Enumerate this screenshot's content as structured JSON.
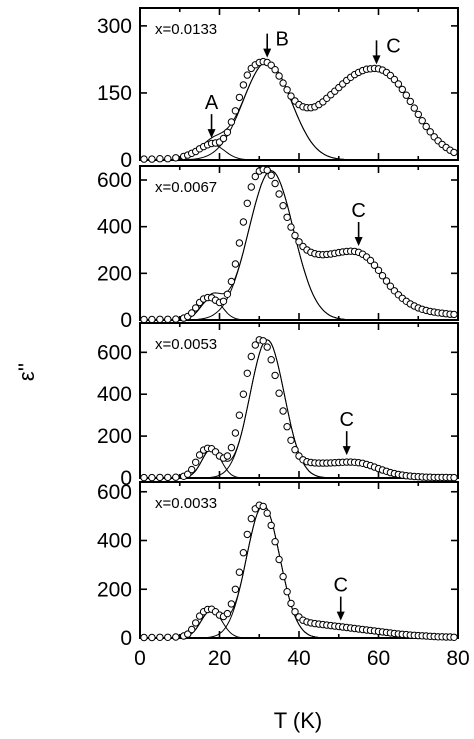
{
  "chart_data": {
    "type": "scatter",
    "ylabel": "ε''",
    "xlabel": "T (K)",
    "xlim": [
      0,
      80
    ],
    "x_ticks": [
      "0",
      "20",
      "40",
      "60",
      "80"
    ],
    "grid": false,
    "legend": "none",
    "panels": [
      {
        "annotation": "x=0.0133",
        "ylim": [
          0,
          340
        ],
        "y_ticks": [
          "0",
          "150",
          "300"
        ],
        "y_tick_values": [
          0,
          150,
          300
        ],
        "peak_labels": [
          {
            "label": "A",
            "x": 18,
            "y": 40
          },
          {
            "label": "B",
            "x": 32,
            "y": 220
          },
          {
            "label": "C",
            "x": 59.5,
            "y": 205
          }
        ],
        "fit_components": [
          {
            "center": 18,
            "amplitude": 35,
            "width": 3.2
          },
          {
            "center": 32,
            "amplitude": 220,
            "width": 6.0
          }
        ],
        "series": [
          {
            "name": "",
            "x": [
              1,
              3,
              5,
              7,
              9,
              11,
              12,
              13,
              14,
              15,
              16,
              17,
              18,
              19,
              20,
              21,
              22,
              23,
              24,
              25,
              26,
              27,
              28,
              29,
              30,
              31,
              32,
              33,
              34,
              35,
              36,
              37,
              38,
              39,
              40,
              41,
              42,
              43,
              44,
              45,
              46,
              47,
              48,
              49,
              50,
              51,
              52,
              53,
              54,
              55,
              56,
              57,
              58,
              59,
              60,
              61,
              62,
              63,
              64,
              65,
              66,
              67,
              68,
              69,
              70,
              71,
              72,
              73,
              74,
              75,
              76,
              77,
              78,
              79
            ],
            "y": [
              2,
              2,
              3,
              3,
              5,
              8,
              11,
              15,
              19,
              25,
              30,
              34,
              37,
              38,
              40,
              48,
              62,
              85,
              110,
              140,
              168,
              190,
              205,
              213,
              218,
              220,
              218,
              212,
              202,
              188,
              172,
              157,
              143,
              132,
              124,
              119,
              117,
              117,
              119,
              124,
              130,
              138,
              146,
              154,
              162,
              170,
              178,
              185,
              191,
              196,
              200,
              203,
              204,
              205,
              204,
              201,
              196,
              189,
              180,
              170,
              158,
              145,
              131,
              116,
              102,
              88,
              75,
              63,
              52,
              43,
              35,
              28,
              22,
              17
            ]
          }
        ]
      },
      {
        "annotation": "x=0.0067",
        "ylim": [
          0,
          660
        ],
        "y_ticks": [
          "0",
          "200",
          "400",
          "600"
        ],
        "y_tick_values": [
          0,
          200,
          400,
          600
        ],
        "peak_labels": [
          {
            "label": "C",
            "x": 55,
            "y": 300
          }
        ],
        "fit_components": [
          {
            "center": 18,
            "amplitude": 95,
            "width": 2.6
          },
          {
            "center": 33,
            "amplitude": 640,
            "width": 5.6
          }
        ],
        "series": [
          {
            "name": "",
            "x": [
              1,
              3,
              5,
              7,
              9,
              11,
              12,
              13,
              14,
              15,
              16,
              17,
              18,
              19,
              20,
              21,
              22,
              23,
              24,
              25,
              26,
              27,
              28,
              29,
              30,
              31,
              32,
              33,
              34,
              35,
              36,
              37,
              38,
              39,
              40,
              41,
              42,
              43,
              44,
              45,
              46,
              47,
              48,
              49,
              50,
              51,
              52,
              53,
              54,
              55,
              56,
              57,
              58,
              59,
              60,
              61,
              62,
              63,
              64,
              65,
              66,
              67,
              68,
              69,
              70,
              71,
              72,
              73,
              74,
              75,
              76,
              77,
              78,
              79
            ],
            "y": [
              2,
              2,
              3,
              3,
              4,
              8,
              15,
              30,
              52,
              75,
              90,
              96,
              95,
              85,
              75,
              80,
              110,
              165,
              240,
              330,
              420,
              500,
              570,
              615,
              638,
              645,
              642,
              620,
              585,
              540,
              490,
              440,
              398,
              362,
              335,
              315,
              300,
              290,
              284,
              281,
              280,
              281,
              283,
              286,
              289,
              292,
              294,
              295,
              294,
              290,
              282,
              270,
              255,
              235,
              213,
              190,
              167,
              145,
              125,
              108,
              93,
              80,
              69,
              60,
              52,
              46,
              41,
              37,
              34,
              31,
              29,
              27,
              25,
              24
            ]
          }
        ]
      },
      {
        "annotation": "x=0.0053",
        "ylim": [
          0,
          740
        ],
        "y_ticks": [
          "0",
          "200",
          "400",
          "600"
        ],
        "y_tick_values": [
          0,
          200,
          400,
          600
        ],
        "peak_labels": [
          {
            "label": "C",
            "x": 52,
            "y": 90
          }
        ],
        "fit_components": [
          {
            "center": 18,
            "amplitude": 140,
            "width": 2.4
          },
          {
            "center": 32,
            "amplitude": 660,
            "width": 4.3
          }
        ],
        "series": [
          {
            "name": "",
            "x": [
              1,
              3,
              5,
              7,
              9,
              11,
              12,
              13,
              14,
              15,
              16,
              17,
              18,
              19,
              20,
              21,
              22,
              23,
              24,
              25,
              26,
              27,
              28,
              29,
              30,
              31,
              32,
              33,
              34,
              35,
              36,
              37,
              38,
              39,
              40,
              41,
              42,
              43,
              44,
              45,
              46,
              47,
              48,
              49,
              50,
              51,
              52,
              53,
              54,
              55,
              56,
              57,
              58,
              59,
              60,
              61,
              62,
              63,
              64,
              65,
              66,
              67,
              68,
              69,
              70,
              71,
              72,
              73,
              74,
              75,
              76,
              77,
              78,
              79
            ],
            "y": [
              2,
              2,
              3,
              3,
              4,
              8,
              18,
              40,
              75,
              110,
              133,
              142,
              140,
              125,
              105,
              95,
              105,
              145,
              215,
              300,
              400,
              500,
              580,
              635,
              660,
              655,
              625,
              565,
              490,
              405,
              320,
              245,
              180,
              135,
              105,
              87,
              78,
              74,
              72,
              71,
              71,
              71,
              72,
              73,
              74,
              75,
              76,
              76,
              75,
              73,
              70,
              65,
              59,
              52,
              45,
              38,
              32,
              26,
              21,
              17,
              14,
              11,
              9,
              7,
              6,
              5,
              4,
              4,
              3,
              3,
              3,
              3,
              2,
              2
            ]
          }
        ]
      },
      {
        "annotation": "x=0.0033",
        "ylim": [
          0,
          640
        ],
        "y_ticks": [
          "0",
          "200",
          "400",
          "600"
        ],
        "y_tick_values": [
          0,
          200,
          400,
          600
        ],
        "peak_labels": [
          {
            "label": "C",
            "x": 50.5,
            "y": 55
          }
        ],
        "fit_components": [
          {
            "center": 18,
            "amplitude": 115,
            "width": 2.6
          },
          {
            "center": 31,
            "amplitude": 545,
            "width": 4.2
          }
        ],
        "series": [
          {
            "name": "",
            "x": [
              1,
              3,
              5,
              7,
              9,
              11,
              12,
              13,
              14,
              15,
              16,
              17,
              18,
              19,
              20,
              21,
              22,
              23,
              24,
              25,
              26,
              27,
              28,
              29,
              30,
              31,
              32,
              33,
              34,
              35,
              36,
              37,
              38,
              39,
              40,
              41,
              42,
              43,
              44,
              45,
              46,
              47,
              48,
              49,
              50,
              51,
              52,
              53,
              54,
              55,
              56,
              57,
              58,
              59,
              60,
              61,
              62,
              63,
              64,
              65,
              66,
              67,
              68,
              69,
              70,
              71,
              72,
              73,
              74,
              75,
              76,
              77,
              78,
              79
            ],
            "y": [
              2,
              2,
              3,
              3,
              4,
              8,
              16,
              35,
              62,
              90,
              108,
              117,
              118,
              108,
              94,
              88,
              100,
              140,
              200,
              270,
              350,
              425,
              490,
              530,
              545,
              540,
              512,
              462,
              395,
              322,
              252,
              190,
              142,
              108,
              86,
              73,
              66,
              62,
              59,
              57,
              55,
              53,
              51,
              49,
              47,
              45,
              43,
              41,
              39,
              37,
              35,
              33,
              31,
              29,
              27,
              25,
              23,
              21,
              19,
              17,
              15,
              14,
              12,
              11,
              10,
              9,
              8,
              7,
              6,
              5,
              5,
              4,
              4,
              3
            ]
          }
        ]
      }
    ]
  }
}
